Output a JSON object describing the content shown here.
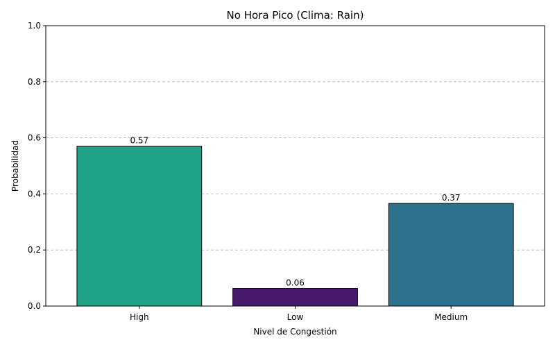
{
  "chart_data": {
    "type": "bar",
    "title": "No Hora Pico (Clima: Rain)",
    "xlabel": "Nivel de Congestión",
    "ylabel": "Probabilidad",
    "categories": [
      "High",
      "Low",
      "Medium"
    ],
    "values": [
      0.57,
      0.063,
      0.366
    ],
    "value_labels": [
      "0.57",
      "0.06",
      "0.37"
    ],
    "colors": [
      "#20a386",
      "#481a6c",
      "#2e7290"
    ],
    "ylim": [
      0,
      1
    ],
    "yticks": [
      0.0,
      0.2,
      0.4,
      0.6,
      0.8,
      1.0
    ],
    "ytick_labels": [
      "0.0",
      "0.2",
      "0.4",
      "0.6",
      "0.8",
      "1.0"
    ],
    "grid": "y-dashed"
  }
}
